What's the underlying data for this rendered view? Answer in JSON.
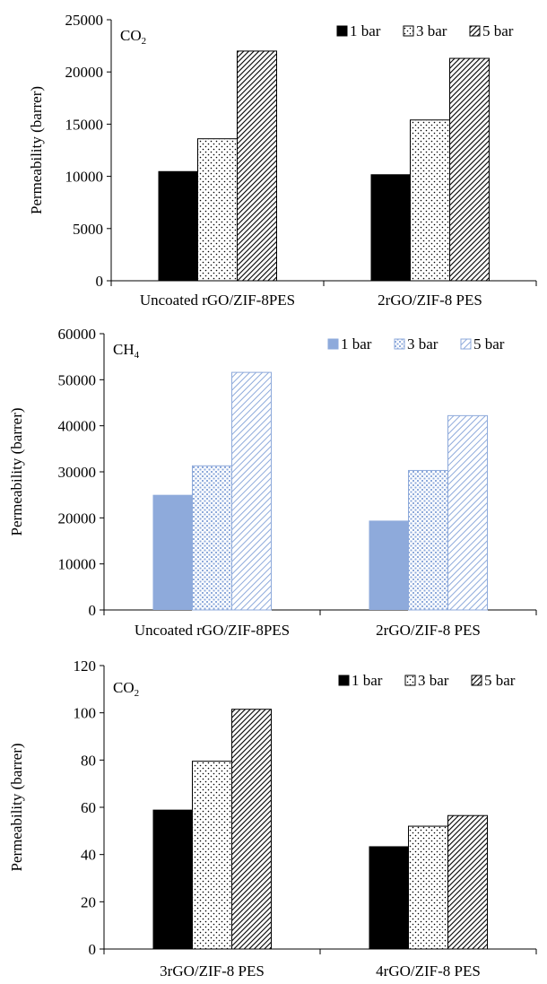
{
  "chart_data": [
    {
      "type": "bar",
      "title": "CO2",
      "title_main": "CO",
      "title_sub": "2",
      "ylabel": "Permeability (barrer)",
      "ylim": [
        0,
        25000
      ],
      "yticks": [
        0,
        5000,
        10000,
        15000,
        20000,
        25000
      ],
      "categories": [
        "Uncoated rGO/ZIF-8PES",
        "2rGO/ZIF-8 PES"
      ],
      "legend_position": "top-right",
      "series": [
        {
          "name": "1 bar",
          "values": [
            10500,
            10200
          ],
          "color": "#000000",
          "pattern": "solid"
        },
        {
          "name": "3 bar",
          "values": [
            13600,
            15400
          ],
          "color": "#000000",
          "pattern": "dots"
        },
        {
          "name": "5 bar",
          "values": [
            22000,
            21300
          ],
          "color": "#000000",
          "pattern": "hatch"
        }
      ]
    },
    {
      "type": "bar",
      "title": "CH4",
      "title_main": "CH",
      "title_sub": "4",
      "ylabel": "Permeability (barrer)",
      "ylim": [
        0,
        60000
      ],
      "yticks": [
        0,
        10000,
        20000,
        30000,
        40000,
        50000,
        60000
      ],
      "categories": [
        "Uncoated rGO/ZIF-8PES",
        "2rGO/ZIF-8 PES"
      ],
      "legend_position": "top-right",
      "series": [
        {
          "name": "1 bar",
          "values": [
            25000,
            19400
          ],
          "color": "#8eaadb",
          "pattern": "solid"
        },
        {
          "name": "3 bar",
          "values": [
            31300,
            30300
          ],
          "color": "#8eaadb",
          "pattern": "dots"
        },
        {
          "name": "5 bar",
          "values": [
            51600,
            42200
          ],
          "color": "#8eaadb",
          "pattern": "hatch"
        }
      ]
    },
    {
      "type": "bar",
      "title": "CO2",
      "title_main": "CO",
      "title_sub": "2",
      "ylabel": "Permeability (barrer)",
      "ylim": [
        0,
        120
      ],
      "yticks": [
        0,
        20,
        40,
        60,
        80,
        100,
        120
      ],
      "categories": [
        "3rGO/ZIF-8 PES",
        "4rGO/ZIF-8 PES"
      ],
      "legend_position": "top-right",
      "series": [
        {
          "name": "1 bar",
          "values": [
            59,
            43.5
          ],
          "color": "#000000",
          "pattern": "solid"
        },
        {
          "name": "3 bar",
          "values": [
            79.5,
            52
          ],
          "color": "#000000",
          "pattern": "dots"
        },
        {
          "name": "5 bar",
          "values": [
            101.5,
            56.5
          ],
          "color": "#000000",
          "pattern": "hatch"
        }
      ]
    }
  ]
}
